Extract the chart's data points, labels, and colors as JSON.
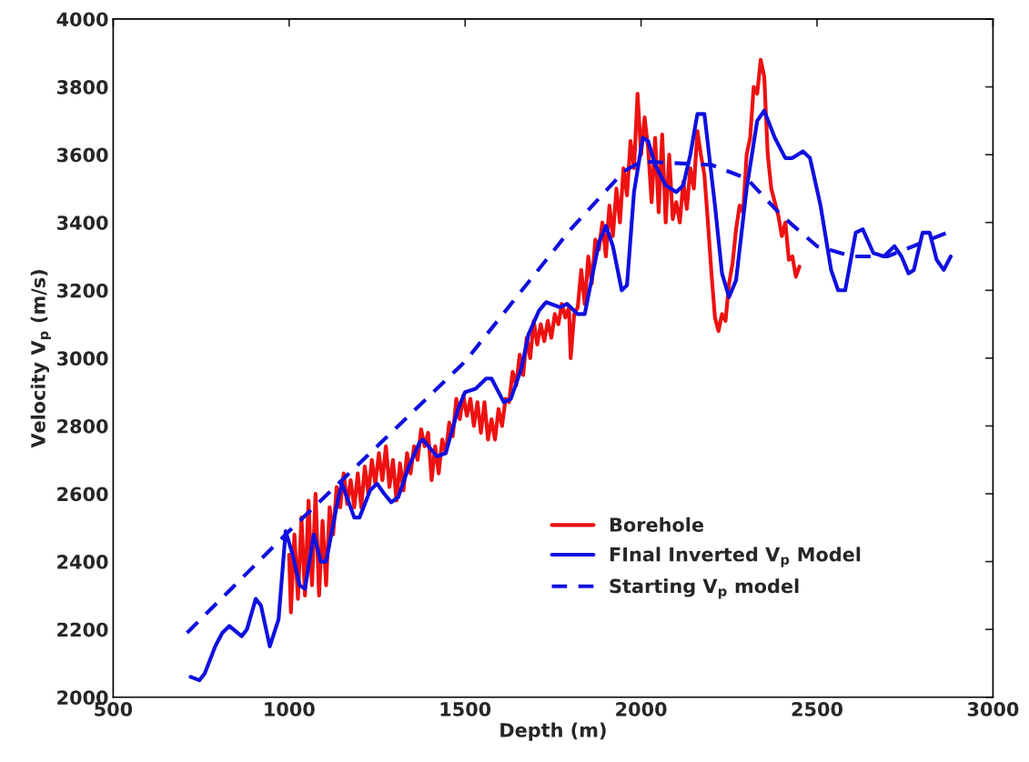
{
  "chart_data": {
    "type": "line",
    "xlabel": "Depth (m)",
    "ylabel": "Velocity V$_{p}$ (m/s)",
    "xlim": [
      500,
      3000
    ],
    "ylim": [
      2000,
      4000
    ],
    "xticks": [
      500,
      1000,
      1500,
      2000,
      2500,
      3000
    ],
    "yticks": [
      2000,
      2200,
      2400,
      2600,
      2800,
      3000,
      3200,
      3400,
      3600,
      3800,
      4000
    ],
    "grid": false,
    "legend": "bottom right",
    "marker": "none",
    "series": [
      {
        "name": "Borehole",
        "color": "#ee1111",
        "line_style": "solid",
        "x": [
          1000,
          1005,
          1015,
          1025,
          1035,
          1045,
          1055,
          1065,
          1075,
          1085,
          1095,
          1105,
          1115,
          1125,
          1135,
          1145,
          1155,
          1165,
          1175,
          1185,
          1195,
          1205,
          1215,
          1225,
          1235,
          1245,
          1255,
          1265,
          1275,
          1285,
          1295,
          1305,
          1315,
          1325,
          1335,
          1345,
          1355,
          1365,
          1375,
          1385,
          1395,
          1405,
          1415,
          1425,
          1435,
          1445,
          1455,
          1465,
          1475,
          1485,
          1495,
          1505,
          1515,
          1525,
          1535,
          1545,
          1555,
          1565,
          1575,
          1585,
          1595,
          1605,
          1615,
          1625,
          1635,
          1645,
          1655,
          1665,
          1675,
          1685,
          1695,
          1705,
          1715,
          1725,
          1735,
          1745,
          1755,
          1765,
          1775,
          1785,
          1795,
          1800,
          1810,
          1820,
          1830,
          1840,
          1850,
          1860,
          1870,
          1880,
          1890,
          1900,
          1910,
          1920,
          1930,
          1940,
          1950,
          1960,
          1970,
          1980,
          1990,
          2000,
          2010,
          2020,
          2030,
          2040,
          2050,
          2060,
          2070,
          2080,
          2090,
          2100,
          2110,
          2120,
          2130,
          2140,
          2150,
          2160,
          2170,
          2180,
          2190,
          2200,
          2210,
          2220,
          2230,
          2240,
          2250,
          2260,
          2270,
          2280,
          2290,
          2300,
          2310,
          2320,
          2330,
          2340,
          2350,
          2360,
          2370,
          2380,
          2390,
          2400,
          2410,
          2420,
          2430,
          2440,
          2450
        ],
        "values": [
          2420,
          2250,
          2480,
          2290,
          2530,
          2300,
          2580,
          2330,
          2600,
          2300,
          2520,
          2330,
          2560,
          2480,
          2620,
          2560,
          2660,
          2570,
          2640,
          2560,
          2660,
          2560,
          2680,
          2600,
          2700,
          2630,
          2720,
          2640,
          2740,
          2620,
          2700,
          2580,
          2690,
          2610,
          2720,
          2660,
          2740,
          2700,
          2790,
          2740,
          2780,
          2640,
          2740,
          2660,
          2760,
          2720,
          2810,
          2770,
          2880,
          2820,
          2890,
          2830,
          2880,
          2800,
          2870,
          2780,
          2870,
          2760,
          2820,
          2760,
          2850,
          2800,
          2880,
          2870,
          2960,
          2920,
          3010,
          2950,
          3060,
          3000,
          3110,
          3040,
          3100,
          3050,
          3110,
          3060,
          3130,
          3100,
          3160,
          3120,
          3150,
          3000,
          3130,
          3150,
          3260,
          3160,
          3300,
          3220,
          3350,
          3320,
          3400,
          3300,
          3450,
          3360,
          3500,
          3400,
          3560,
          3480,
          3640,
          3560,
          3780,
          3600,
          3710,
          3620,
          3460,
          3650,
          3430,
          3660,
          3400,
          3600,
          3410,
          3460,
          3400,
          3520,
          3440,
          3560,
          3500,
          3670,
          3600,
          3540,
          3400,
          3250,
          3120,
          3080,
          3130,
          3110,
          3220,
          3280,
          3380,
          3450,
          3430,
          3600,
          3650,
          3800,
          3780,
          3880,
          3830,
          3600,
          3500,
          3460,
          3420,
          3360,
          3400,
          3290,
          3300,
          3240,
          3270
        ]
      },
      {
        "name": "FInal Inverted V$_{p}$ Model",
        "color": "#1010e0",
        "line_style": "solid",
        "x": [
          720,
          745,
          760,
          790,
          810,
          830,
          865,
          880,
          905,
          920,
          945,
          970,
          990,
          1010,
          1030,
          1045,
          1070,
          1090,
          1105,
          1140,
          1150,
          1185,
          1200,
          1230,
          1250,
          1270,
          1290,
          1310,
          1340,
          1370,
          1380,
          1420,
          1445,
          1480,
          1500,
          1530,
          1560,
          1575,
          1610,
          1630,
          1660,
          1680,
          1710,
          1730,
          1770,
          1790,
          1820,
          1840,
          1880,
          1900,
          1920,
          1945,
          1960,
          1980,
          2005,
          2020,
          2040,
          2070,
          2100,
          2120,
          2140,
          2160,
          2180,
          2210,
          2230,
          2250,
          2270,
          2300,
          2330,
          2350,
          2380,
          2410,
          2430,
          2460,
          2480,
          2510,
          2540,
          2560,
          2580,
          2610,
          2630,
          2660,
          2690,
          2720,
          2740,
          2760,
          2775,
          2800,
          2820,
          2840,
          2860,
          2880
        ],
        "values": [
          2060,
          2050,
          2070,
          2150,
          2190,
          2210,
          2180,
          2200,
          2290,
          2270,
          2150,
          2230,
          2490,
          2420,
          2330,
          2320,
          2480,
          2400,
          2400,
          2590,
          2630,
          2530,
          2530,
          2610,
          2630,
          2600,
          2575,
          2590,
          2680,
          2750,
          2760,
          2710,
          2720,
          2850,
          2900,
          2910,
          2940,
          2940,
          2870,
          2880,
          2970,
          3070,
          3140,
          3165,
          3150,
          3160,
          3130,
          3130,
          3340,
          3390,
          3330,
          3200,
          3215,
          3490,
          3650,
          3640,
          3570,
          3510,
          3490,
          3510,
          3600,
          3720,
          3720,
          3450,
          3250,
          3180,
          3230,
          3500,
          3700,
          3730,
          3650,
          3590,
          3590,
          3610,
          3590,
          3450,
          3260,
          3200,
          3200,
          3370,
          3380,
          3310,
          3300,
          3330,
          3300,
          3250,
          3260,
          3370,
          3370,
          3290,
          3260,
          3300
        ]
      },
      {
        "name": "Starting V$_{p}$ model",
        "color": "#1010e0",
        "line_style": "dashed",
        "x": [
          710,
          1000,
          1500,
          1800,
          1950,
          2000,
          2200,
          2300,
          2400,
          2500,
          2600,
          2700,
          2870
        ],
        "values": [
          2190,
          2490,
          2990,
          3380,
          3550,
          3580,
          3570,
          3530,
          3420,
          3330,
          3300,
          3300,
          3370
        ]
      }
    ]
  }
}
